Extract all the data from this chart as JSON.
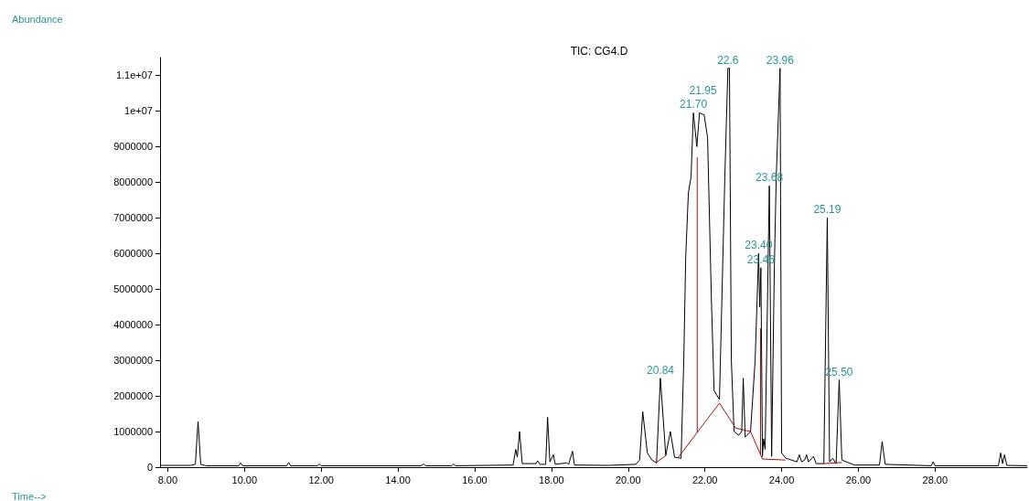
{
  "chart_data": {
    "type": "line",
    "title": "TIC: CG4.D",
    "xlim": [
      7.8,
      30.4
    ],
    "xticks": [
      {
        "value": 8,
        "label": "8.00"
      },
      {
        "value": 10,
        "label": "10.00"
      },
      {
        "value": 12,
        "label": "12.00"
      },
      {
        "value": 14,
        "label": "14.00"
      },
      {
        "value": 16,
        "label": "16.00"
      },
      {
        "value": 18,
        "label": "18.00"
      },
      {
        "value": 20,
        "label": "20.00"
      },
      {
        "value": 22,
        "label": "22.00"
      },
      {
        "value": 24,
        "label": "24.00"
      },
      {
        "value": 26,
        "label": "26.00"
      },
      {
        "value": 28,
        "label": "28.00"
      }
    ],
    "ylim": [
      0,
      11500000
    ],
    "yticks": [
      0,
      1000000,
      2000000,
      3000000,
      4000000,
      5000000,
      6000000,
      7000000,
      8000000,
      9000000,
      {
        "value": 10000000,
        "label": "1e+07"
      },
      {
        "value": 11000000,
        "label": "1.1e+07"
      }
    ],
    "grid": false,
    "marker": "none",
    "line_style": "solid",
    "series": [
      {
        "color": "#000000",
        "x": [
          7.83,
          8.6,
          8.72,
          8.79,
          8.86,
          9.0,
          9.85,
          9.9,
          9.95,
          11.1,
          11.15,
          11.2,
          11.9,
          11.95,
          12.0,
          14.6,
          14.67,
          14.72,
          15.4,
          15.45,
          15.5,
          17.0,
          17.07,
          17.11,
          17.17,
          17.24,
          17.6,
          17.64,
          17.7,
          17.85,
          17.9,
          17.96,
          18.05,
          18.1,
          18.4,
          18.45,
          18.55,
          18.6,
          19.5,
          20.2,
          20.3,
          20.38,
          20.5,
          20.62,
          20.74,
          20.84,
          20.98,
          21.1,
          21.21,
          21.38,
          21.45,
          21.5,
          21.57,
          21.64,
          21.7,
          21.79,
          21.86,
          21.95,
          21.98,
          22.07,
          22.17,
          22.24,
          22.38,
          22.52,
          22.6,
          22.64,
          22.69,
          22.76,
          22.88,
          22.96,
          23.0,
          23.05,
          23.19,
          23.31,
          23.4,
          23.43,
          23.46,
          23.5,
          23.53,
          23.57,
          23.68,
          23.74,
          23.81,
          23.86,
          23.96,
          24.0,
          24.11,
          24.4,
          24.46,
          24.52,
          24.6,
          24.65,
          24.7,
          24.83,
          24.9,
          25.1,
          25.19,
          25.25,
          25.33,
          25.42,
          25.5,
          25.57,
          25.9,
          26.55,
          26.62,
          26.7,
          27.9,
          27.95,
          28.0,
          29.65,
          29.71,
          29.76,
          29.81,
          29.87,
          30.4
        ],
        "values": [
          50000,
          50000,
          80000,
          1280000,
          80000,
          40000,
          40000,
          120000,
          40000,
          40000,
          130000,
          40000,
          40000,
          90000,
          40000,
          40000,
          90000,
          40000,
          40000,
          90000,
          40000,
          60000,
          500000,
          280000,
          1000000,
          100000,
          100000,
          180000,
          80000,
          80000,
          1400000,
          150000,
          350000,
          80000,
          120000,
          80000,
          450000,
          60000,
          50000,
          80000,
          200000,
          1560000,
          400000,
          200000,
          120000,
          2500000,
          330000,
          1000000,
          280000,
          250000,
          3000000,
          5900000,
          7700000,
          8150000,
          9950000,
          9000000,
          9950000,
          9900000,
          9900000,
          9250000,
          4700000,
          2150000,
          1900000,
          8150000,
          11200000,
          11200000,
          3000000,
          1000000,
          900000,
          1000000,
          2500000,
          850000,
          1000000,
          3000000,
          6000000,
          4500000,
          5600000,
          300000,
          800000,
          500000,
          7900000,
          300000,
          5600000,
          8150000,
          11200000,
          400000,
          250000,
          150000,
          350000,
          150000,
          200000,
          350000,
          150000,
          300000,
          100000,
          100000,
          7000000,
          150000,
          250000,
          100000,
          2450000,
          200000,
          60000,
          60000,
          720000,
          80000,
          40000,
          150000,
          40000,
          40000,
          400000,
          100000,
          350000,
          50000,
          40000
        ]
      },
      {
        "color": "#a01010",
        "x": [
          20.73,
          20.99
        ],
        "values": [
          130000,
          330000
        ]
      },
      {
        "color": "#a01010",
        "x": [
          21.31,
          22.38,
          22.8,
          23.19,
          23.5,
          24.1
        ],
        "values": [
          280000,
          1800000,
          1100000,
          1000000,
          230000,
          200000
        ]
      },
      {
        "color": "#a01010",
        "x": [
          21.8,
          21.8
        ],
        "values": [
          970000,
          8700000
        ]
      },
      {
        "color": "#a01010",
        "x": [
          23.45,
          23.45
        ],
        "values": [
          350000,
          3900000
        ]
      },
      {
        "color": "#a01010",
        "x": [
          25.1,
          25.57
        ],
        "values": [
          100000,
          130000
        ]
      }
    ],
    "annotations": [
      "Abundance",
      "Time-->",
      {
        "text": "20.84",
        "x": 20.84,
        "y": 2500000
      },
      {
        "text": "21.70",
        "x": 21.7,
        "y": 9950000
      },
      {
        "text": "21.95",
        "x": 21.95,
        "y": 9900000
      },
      {
        "text": "22.6",
        "x": 22.6,
        "y": 11200000
      },
      {
        "text": "23.96",
        "x": 23.96,
        "y": 11200000
      },
      {
        "text": "23.68",
        "x": 23.68,
        "y": 7900000
      },
      {
        "text": "23.40",
        "x": 23.4,
        "y": 6000000
      },
      {
        "text": "23.46",
        "x": 23.46,
        "y": 5600000
      },
      {
        "text": "25.19",
        "x": 25.19,
        "y": 7000000
      },
      {
        "text": "25.50",
        "x": 25.5,
        "y": 2450000
      }
    ]
  }
}
